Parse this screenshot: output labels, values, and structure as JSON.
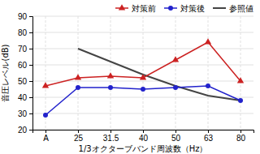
{
  "chart_data": {
    "type": "line",
    "categories": [
      "A",
      "25",
      "31.5",
      "40",
      "50",
      "63",
      "80"
    ],
    "xlabel": "1/3オクターブバンド周波数（Hz）",
    "ylabel": "音圧レベル(dB)",
    "ylim": [
      20,
      90
    ],
    "yticks": [
      20,
      30,
      40,
      50,
      60,
      70,
      80,
      90
    ],
    "grid": true,
    "legend": "upper right",
    "series": [
      {
        "name": "対策前",
        "color": "#cc2222",
        "marker": "triangle",
        "line_style": "solid",
        "values": [
          47,
          52,
          53,
          52,
          63,
          74,
          50
        ]
      },
      {
        "name": "対策後",
        "color": "#2222cc",
        "marker": "circle",
        "line_style": "solid",
        "values": [
          29,
          46,
          46,
          45,
          46,
          47,
          38
        ]
      },
      {
        "name": "参照値",
        "color": "#444444",
        "marker": "none",
        "line_style": "solid",
        "values": [
          null,
          70,
          62,
          54,
          47,
          41,
          38
        ]
      }
    ]
  }
}
